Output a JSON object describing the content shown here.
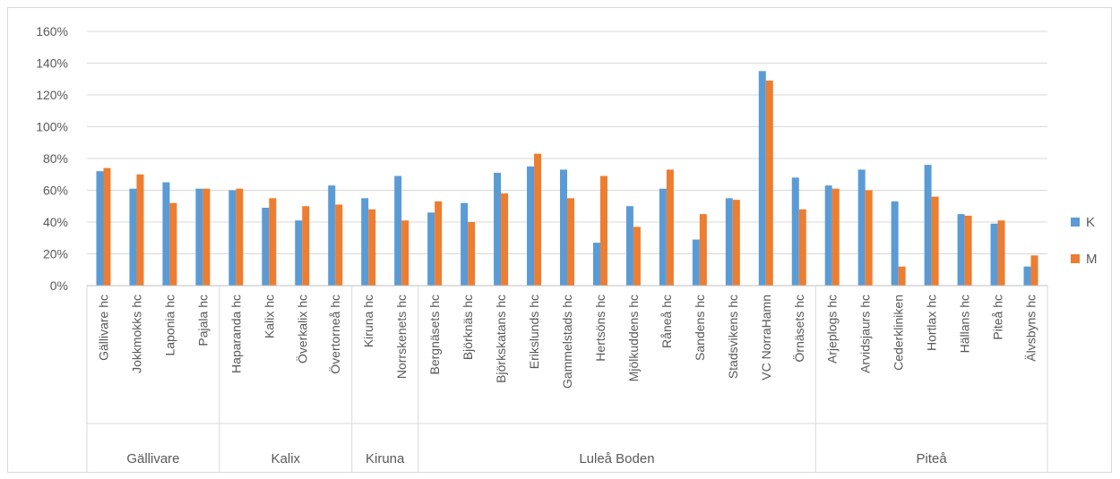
{
  "chart_data": {
    "type": "bar",
    "title": "",
    "xlabel": "",
    "ylabel": "",
    "ylim": [
      0,
      160
    ],
    "yticks": [
      "0%",
      "20%",
      "40%",
      "60%",
      "80%",
      "100%",
      "120%",
      "140%",
      "160%"
    ],
    "grid": true,
    "legend_position": "right",
    "groups": [
      {
        "name": "Gällivare",
        "count": 4
      },
      {
        "name": "Kalix",
        "count": 4
      },
      {
        "name": "Kiruna",
        "count": 2
      },
      {
        "name": "Luleå Boden",
        "count": 12
      },
      {
        "name": "Piteå",
        "count": 7
      }
    ],
    "categories": [
      "Gällivare hc",
      "Jokkmokks hc",
      "Laponia hc",
      "Pajala hc",
      "Haparanda hc",
      "Kalix hc",
      "Överkalix hc",
      "Övertorneå hc",
      "Kiruna hc",
      "Norrskenets hc",
      "Bergnäsets hc",
      "Björknäs hc",
      "Björkskatans hc",
      "Erikslunds hc",
      "Gammelstads hc",
      "Hertsöns hc",
      "Mjölkuddens hc",
      "Råneå hc",
      "Sandens hc",
      "Stadsvikens hc",
      "VC NorraHamn",
      "Örnäsets hc",
      "Arjeplogs hc",
      "Arvidsjaurs hc",
      "Cederkliniken",
      "Hortlax hc",
      "Hällans hc",
      "Piteå hc",
      "Älvsbyns hc"
    ],
    "series": [
      {
        "name": "K",
        "color": "#5b9bd5",
        "values": [
          72,
          61,
          65,
          61,
          60,
          49,
          41,
          63,
          55,
          69,
          46,
          52,
          71,
          75,
          73,
          27,
          50,
          61,
          29,
          55,
          135,
          68,
          63,
          73,
          53,
          76,
          45,
          39,
          12
        ]
      },
      {
        "name": "M",
        "color": "#ed7d31",
        "values": [
          74,
          70,
          52,
          61,
          61,
          55,
          50,
          51,
          48,
          41,
          53,
          40,
          58,
          83,
          55,
          69,
          37,
          73,
          45,
          54,
          129,
          48,
          61,
          60,
          12,
          56,
          44,
          41,
          19
        ]
      }
    ]
  }
}
